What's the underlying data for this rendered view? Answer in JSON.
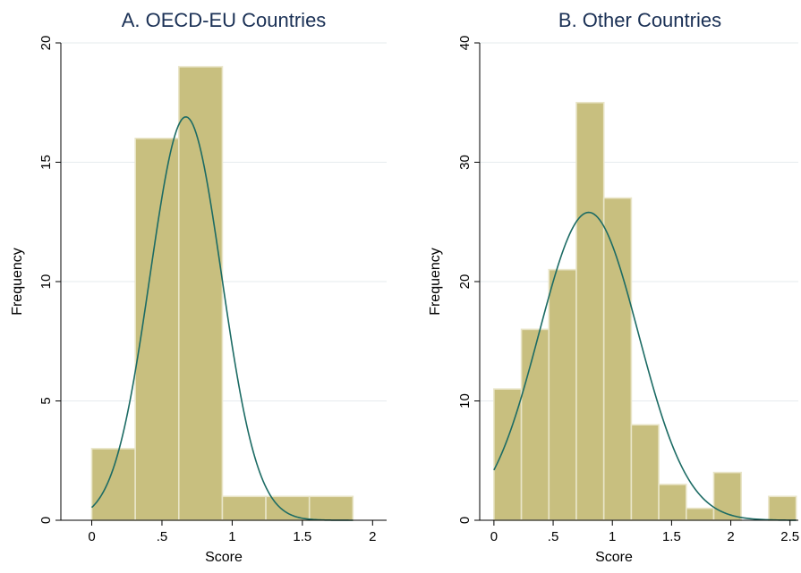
{
  "colors": {
    "bar_fill": "#c8bf7f",
    "bar_edge": "#e9e5c8",
    "curve": "#1c6b64",
    "grid": "#e6ebee",
    "title": "#1a3055"
  },
  "chart_data": [
    {
      "type": "bar",
      "title": "A. OECD-EU Countries",
      "xlabel": "Score",
      "ylabel": "Frequency",
      "xlim": [
        -0.22,
        2.1
      ],
      "ylim": [
        0,
        20
      ],
      "x_ticks": [
        0,
        0.5,
        1,
        1.5,
        2
      ],
      "x_tick_labels": [
        "0",
        ".5",
        "1",
        "1.5",
        "2"
      ],
      "y_ticks": [
        0,
        5,
        10,
        15,
        20
      ],
      "y_tick_labels": [
        "0",
        "5",
        "10",
        "15",
        "20"
      ],
      "grid": true,
      "bin_edges": [
        0,
        0.31,
        0.62,
        0.93,
        1.24,
        1.55,
        1.86
      ],
      "values": [
        3,
        16,
        19,
        1,
        1,
        1
      ],
      "normal_curve": {
        "mean": 0.67,
        "sd": 0.255,
        "peak": 16.9
      }
    },
    {
      "type": "bar",
      "title": "B. Other Countries",
      "xlabel": "Score",
      "ylabel": "Frequency",
      "xlim": [
        -0.12,
        2.57
      ],
      "ylim": [
        0,
        40
      ],
      "x_ticks": [
        0,
        0.5,
        1,
        1.5,
        2,
        2.5
      ],
      "x_tick_labels": [
        "0",
        ".5",
        "1",
        "1.5",
        "2",
        "2.5"
      ],
      "y_ticks": [
        0,
        10,
        20,
        30,
        40
      ],
      "y_tick_labels": [
        "0",
        "10",
        "20",
        "30",
        "40"
      ],
      "grid": true,
      "bin_edges": [
        0,
        0.232,
        0.464,
        0.696,
        0.928,
        1.16,
        1.392,
        1.624,
        1.856,
        2.088,
        2.32,
        2.552
      ],
      "values": [
        11,
        16,
        21,
        35,
        27,
        8,
        3,
        1,
        4,
        0,
        2
      ],
      "normal_curve": {
        "mean": 0.8,
        "sd": 0.42,
        "peak": 25.8
      }
    }
  ]
}
